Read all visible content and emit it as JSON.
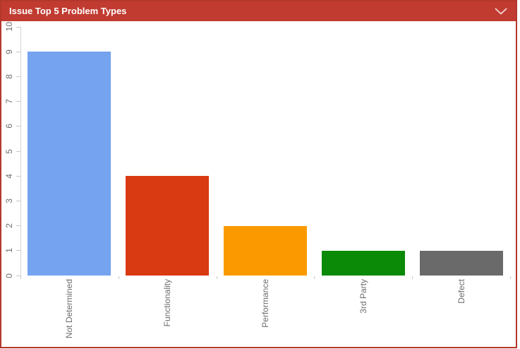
{
  "widget": {
    "title": "Issue Top 5 Problem Types",
    "header_color": "#c13b31",
    "border_color": "#b5372c",
    "title_color": "#ffffff",
    "collapse_icon": "chevron-down"
  },
  "chart_data": {
    "type": "bar",
    "title": "Issue Top 5 Problem Types",
    "categories": [
      "Not Determined",
      "Functionality",
      "Performance",
      "3rd Party",
      "Defect"
    ],
    "values": [
      9,
      4,
      2,
      1,
      1
    ],
    "bar_colors": [
      "#75a3f0",
      "#d93a12",
      "#fb9a00",
      "#0a8a06",
      "#6a6a6a"
    ],
    "xlabel": "",
    "ylabel": "",
    "ylim": [
      0,
      10
    ],
    "ytick_step": 1,
    "x_label_rotation": -90,
    "y_label_rotation": -90,
    "grid": false,
    "legend": false,
    "axis_color": "#d4d4d4",
    "tick_color": "#c9c9c9",
    "label_color": "#6e6e6e"
  }
}
